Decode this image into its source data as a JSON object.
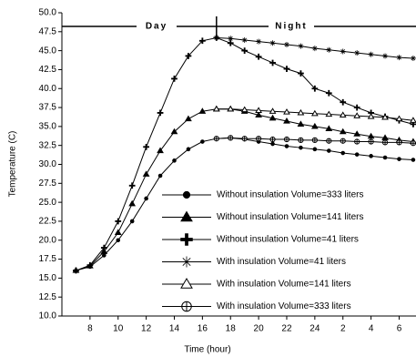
{
  "chart_data": {
    "type": "line",
    "x_label": "Time (hour)",
    "y_label": "Temperature (C)",
    "annotations": [
      "Day",
      "Night"
    ],
    "x": [
      7,
      8,
      9,
      10,
      11,
      12,
      13,
      14,
      15,
      16,
      17,
      18,
      19,
      20,
      21,
      22,
      23,
      24,
      25,
      26,
      27,
      28,
      29,
      30,
      31
    ],
    "xlim": [
      6,
      31.2
    ],
    "xticks": [
      8,
      10,
      12,
      14,
      16,
      18,
      20,
      22,
      24,
      {
        "value": 26,
        "label": "2"
      },
      {
        "value": 28,
        "label": "4"
      },
      {
        "value": 30,
        "label": "6"
      }
    ],
    "ylim": [
      10,
      50
    ],
    "yticks": [
      {
        "value": 10,
        "label": "10.0"
      },
      12.5,
      {
        "value": 15,
        "label": "15.0"
      },
      17.5,
      {
        "value": 20,
        "label": "20.0"
      },
      22.5,
      {
        "value": 25,
        "label": "25.0"
      },
      27.5,
      {
        "value": 30,
        "label": "30.0"
      },
      32.5,
      {
        "value": 35,
        "label": "35.0"
      },
      37.5,
      {
        "value": 40,
        "label": "40.0"
      },
      42.5,
      {
        "value": 45,
        "label": "45.0"
      },
      47.5,
      {
        "value": 50,
        "label": "50.0"
      }
    ],
    "series": [
      {
        "name": "Without insulation Volume=333 liters",
        "color": "#000000",
        "marker": "circle",
        "values": [
          16,
          16.5,
          18,
          20,
          22.5,
          25.5,
          28.5,
          30.5,
          32,
          33,
          33.4,
          33.5,
          33.3,
          33,
          32.7,
          32.4,
          32.2,
          32,
          31.8,
          31.5,
          31.3,
          31.1,
          30.9,
          30.7,
          30.6
        ]
      },
      {
        "name": "Without insulation Volume=141 liters",
        "color": "#000000",
        "marker": "triangle",
        "values": [
          16,
          16.6,
          18.5,
          21,
          24.8,
          28.7,
          31.8,
          34.3,
          36,
          37,
          37.3,
          37.3,
          37,
          36.5,
          36.1,
          35.7,
          35.3,
          35,
          34.7,
          34.3,
          34,
          33.7,
          33.5,
          33.2,
          33
        ]
      },
      {
        "name": "Without insulation Volume=41 liters",
        "color": "#000000",
        "marker": "plus",
        "values": [
          16,
          16.7,
          19,
          22.5,
          27.2,
          32.3,
          36.8,
          41.3,
          44.3,
          46.3,
          46.7,
          46,
          45,
          44.2,
          43.4,
          42.6,
          42,
          40,
          39.4,
          38.2,
          37.5,
          36.8,
          36.3,
          35.8,
          35.3
        ]
      },
      {
        "name": "With insulation Volume=41 liters",
        "color": "#000000",
        "marker": "star",
        "values": [
          null,
          null,
          null,
          null,
          null,
          null,
          null,
          null,
          null,
          null,
          46.7,
          46.6,
          46.4,
          46.2,
          46,
          45.8,
          45.6,
          45.3,
          45.1,
          44.9,
          44.7,
          44.5,
          44.3,
          44.1,
          44
        ]
      },
      {
        "name": "With insulation Volume=141 liters",
        "color": "#000000",
        "marker": "open-triangle",
        "values": [
          null,
          null,
          null,
          null,
          null,
          null,
          null,
          null,
          null,
          null,
          37.3,
          37.3,
          37.2,
          37.1,
          37,
          36.9,
          36.8,
          36.7,
          36.6,
          36.5,
          36.4,
          36.3,
          36.2,
          36,
          35.8
        ]
      },
      {
        "name": "With insulation Volume=333 liters",
        "color": "#000000",
        "marker": "circle-plus",
        "values": [
          null,
          null,
          null,
          null,
          null,
          null,
          null,
          null,
          null,
          null,
          33.4,
          33.5,
          33.4,
          33.4,
          33.3,
          33.3,
          33.2,
          33.2,
          33.1,
          33.1,
          33,
          33,
          32.9,
          32.9,
          32.8
        ]
      }
    ]
  }
}
